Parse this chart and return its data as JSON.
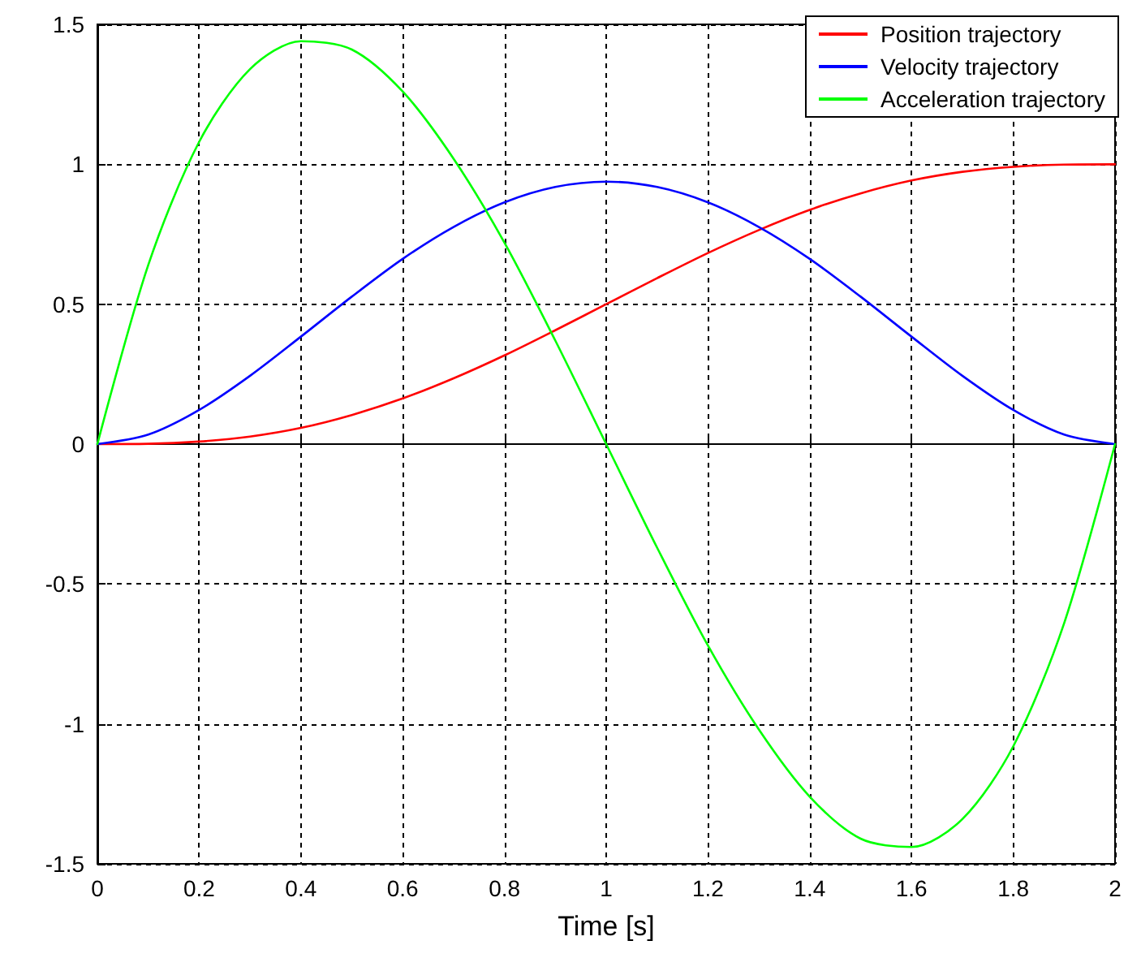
{
  "chart_data": {
    "type": "line",
    "xlabel": "Time [s]",
    "x": [
      0,
      0.1,
      0.2,
      0.3,
      0.4,
      0.5,
      0.6,
      0.7,
      0.8,
      0.9,
      1,
      1.1,
      1.2,
      1.3,
      1.4,
      1.5,
      1.6,
      1.7,
      1.8,
      1.9,
      2
    ],
    "series": [
      {
        "name": "Position trajectory",
        "color": "#ff0000",
        "values": [
          0,
          0.001,
          0.009,
          0.027,
          0.058,
          0.104,
          0.163,
          0.235,
          0.317,
          0.407,
          0.5,
          0.593,
          0.683,
          0.765,
          0.837,
          0.896,
          0.942,
          0.973,
          0.991,
          0.999,
          1
        ]
      },
      {
        "name": "Velocity trajectory",
        "color": "#0000ff",
        "values": [
          0,
          0.034,
          0.122,
          0.244,
          0.384,
          0.527,
          0.662,
          0.776,
          0.864,
          0.919,
          0.938,
          0.919,
          0.864,
          0.776,
          0.662,
          0.527,
          0.384,
          0.244,
          0.122,
          0.034,
          0
        ]
      },
      {
        "name": "Acceleration trajectory",
        "color": "#00ff00",
        "values": [
          0,
          0.64,
          1.08,
          1.34,
          1.44,
          1.41,
          1.26,
          1.02,
          0.72,
          0.37,
          0,
          -0.37,
          -0.72,
          -1.02,
          -1.26,
          -1.41,
          -1.44,
          -1.34,
          -1.08,
          -0.64,
          0
        ]
      }
    ],
    "xlim": [
      0,
      2
    ],
    "xticks": [
      0,
      0.2,
      0.4,
      0.6,
      0.8,
      1,
      1.2,
      1.4,
      1.6,
      1.8,
      2
    ],
    "ylim": [
      -1.5,
      1.5
    ],
    "yticks": [
      -1.5,
      -1,
      -0.5,
      0,
      0.5,
      1,
      1.5
    ],
    "grid": true,
    "legend": "top right",
    "marker": "none",
    "line_style": "solid"
  }
}
